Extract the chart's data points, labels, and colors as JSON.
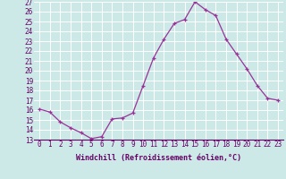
{
  "x": [
    0,
    1,
    2,
    3,
    4,
    5,
    6,
    7,
    8,
    9,
    10,
    11,
    12,
    13,
    14,
    15,
    16,
    17,
    18,
    19,
    20,
    21,
    22,
    23
  ],
  "y": [
    16.1,
    15.8,
    14.8,
    14.2,
    13.7,
    13.1,
    13.3,
    15.1,
    15.2,
    15.7,
    18.5,
    21.3,
    23.2,
    24.8,
    25.2,
    27.0,
    26.2,
    25.6,
    23.2,
    21.7,
    20.2,
    18.5,
    17.2,
    17.0
  ],
  "xlabel": "Windchill (Refroidissement éolien,°C)",
  "ylim": [
    13,
    27
  ],
  "xlim": [
    -0.5,
    23.5
  ],
  "yticks": [
    13,
    14,
    15,
    16,
    17,
    18,
    19,
    20,
    21,
    22,
    23,
    24,
    25,
    26,
    27
  ],
  "xticks": [
    0,
    1,
    2,
    3,
    4,
    5,
    6,
    7,
    8,
    9,
    10,
    11,
    12,
    13,
    14,
    15,
    16,
    17,
    18,
    19,
    20,
    21,
    22,
    23
  ],
  "line_color": "#993399",
  "marker_color": "#993399",
  "bg_color": "#cce9e8",
  "grid_color": "#ffffff",
  "text_color": "#660066",
  "tick_fontsize": 5.5,
  "xlabel_fontsize": 6.0
}
